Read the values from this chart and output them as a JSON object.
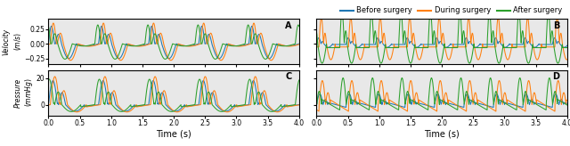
{
  "colors": {
    "before": "#1f77b4",
    "during": "#ff7f0e",
    "after": "#2ca02c"
  },
  "legend_labels": [
    "Before surgery",
    "During surgery",
    "After surgery"
  ],
  "ylabel_top": "Velocity\n$(m/s)$",
  "ylabel_bottom": "Pressure\n$(mmHg)$",
  "xlabel": "Time (s)",
  "panel_labels": [
    "A",
    "B",
    "C",
    "D"
  ],
  "xlim": [
    0.0,
    4.0
  ],
  "vel_A_ylim": [
    -0.35,
    0.42
  ],
  "vel_A_yticks": [
    -0.25,
    0.0,
    0.25
  ],
  "vel_B_ylim": [
    -0.35,
    0.42
  ],
  "vel_B_yticks": [
    -0.25,
    0.0,
    0.25
  ],
  "pres_A_ylim": [
    -8,
    26
  ],
  "pres_A_yticks": [
    0,
    20
  ],
  "pres_B_ylim": [
    -8,
    26
  ],
  "pres_B_yticks": [
    0,
    20
  ],
  "background_color": "#e8e8e8"
}
